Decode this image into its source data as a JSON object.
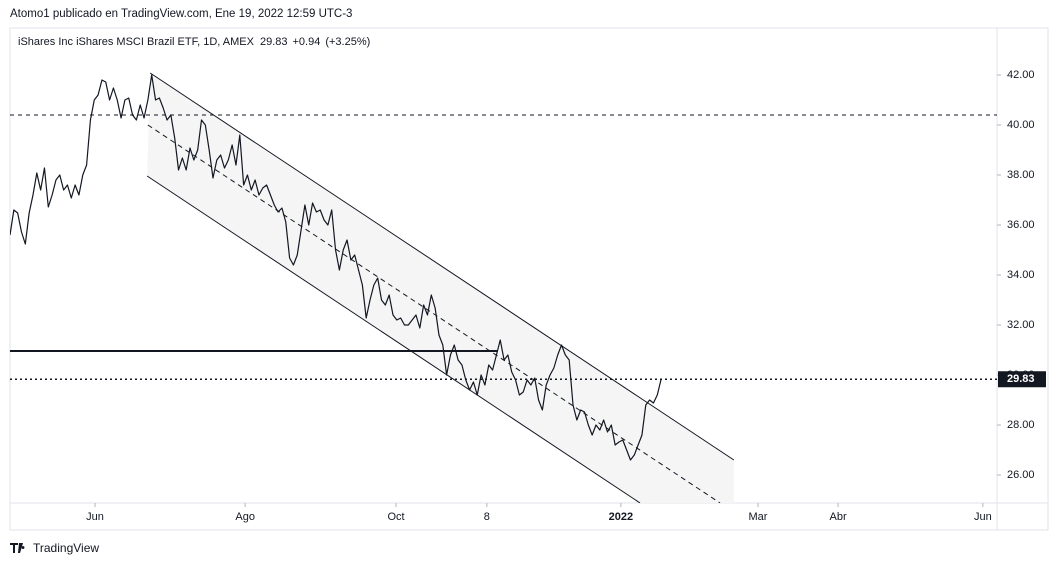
{
  "chart_data": {
    "type": "line",
    "header": "Atomo1 publicado en TradingView.com, Ene 19, 2022 12:59 UTC-3",
    "title": "iShares Inc iShares MSCI Brazil ETF, 1D, AMEX",
    "last": 29.83,
    "change": {
      "value": 0.94,
      "label": "+0.94"
    },
    "change_pct": {
      "value": 3.25,
      "label": "(+3.25%)"
    },
    "footer": "TradingView",
    "series": [
      {
        "name": "iShares MSCI Brazil ETF",
        "color": "#131722",
        "values": [
          35.6,
          36.6,
          36.48,
          35.72,
          35.24,
          36.48,
          37.2,
          38.08,
          37.4,
          38.28,
          36.72,
          37.2,
          37.8,
          38.0,
          37.4,
          37.6,
          37.08,
          37.6,
          37.2,
          38.0,
          38.4,
          40.2,
          41.0,
          41.2,
          41.8,
          41.72,
          41.0,
          41.48,
          41.0,
          40.28,
          41.0,
          41.08,
          40.4,
          40.2,
          40.8,
          40.28,
          41.0,
          42.0,
          41.0,
          41.08,
          40.68,
          40.2,
          40.4,
          39.48,
          38.2,
          38.68,
          38.2,
          39.08,
          38.6,
          39.0,
          40.2,
          40.0,
          39.0,
          37.88,
          38.6,
          38.8,
          38.28,
          38.6,
          39.2,
          38.4,
          39.6,
          37.6,
          38.0,
          37.4,
          37.8,
          37.2,
          37.48,
          37.6,
          37.2,
          36.8,
          36.52,
          36.68,
          36.12,
          34.68,
          34.4,
          34.8,
          35.8,
          36.8,
          36.0,
          36.88,
          36.52,
          36.6,
          36.2,
          36.0,
          36.6,
          35.0,
          34.2,
          35.0,
          35.4,
          34.6,
          34.8,
          34.2,
          33.6,
          32.28,
          33.0,
          33.6,
          33.88,
          33.0,
          32.8,
          33.2,
          32.4,
          32.2,
          32.28,
          32.0,
          32.0,
          32.2,
          32.4,
          31.88,
          32.8,
          32.4,
          33.2,
          32.68,
          31.6,
          31.2,
          30.0,
          30.8,
          31.2,
          30.6,
          30.4,
          29.8,
          29.4,
          29.72,
          29.2,
          30.0,
          29.6,
          30.4,
          30.2,
          30.8,
          31.4,
          30.6,
          30.8,
          30.12,
          29.8,
          29.2,
          29.32,
          29.8,
          29.6,
          29.88,
          29.0,
          28.6,
          29.6,
          30.0,
          30.28,
          30.8,
          31.2,
          30.8,
          30.6,
          28.8,
          28.2,
          28.6,
          28.52,
          28.0,
          27.6,
          28.0,
          27.8,
          28.2,
          27.72,
          28.0,
          27.2,
          27.32,
          27.4,
          27.0,
          26.6,
          26.8,
          27.2,
          27.6,
          28.8,
          29.0,
          28.88,
          29.2,
          29.83
        ]
      }
    ],
    "xlim": [
      0,
      257.7
    ],
    "xticks": [
      {
        "value": 22.2,
        "label": "Jun"
      },
      {
        "value": 61.4,
        "label": "Ago"
      },
      {
        "value": 100.8,
        "label": "Oct"
      },
      {
        "value": 124.5,
        "label": "8"
      },
      {
        "value": 159.5,
        "label": "2022"
      },
      {
        "value": 195.3,
        "label": "Mar"
      },
      {
        "value": 216.2,
        "label": "Abr"
      },
      {
        "value": 254.0,
        "label": "Jun"
      }
    ],
    "ylim": [
      24.88,
      43.88
    ],
    "yticks": [
      {
        "value": 26,
        "label": "26.00"
      },
      {
        "value": 28,
        "label": "28.00"
      },
      {
        "value": 30,
        "label": "30.00"
      },
      {
        "value": 32,
        "label": "32.00"
      },
      {
        "value": 34,
        "label": "34.00"
      },
      {
        "value": 36,
        "label": "36.00"
      },
      {
        "value": 38,
        "label": "38.00"
      },
      {
        "value": 40,
        "label": "40.00"
      },
      {
        "value": 42,
        "label": "42.00"
      }
    ],
    "channel": {
      "upper": [
        [
          36.6,
          42.08
        ],
        [
          189.0,
          26.6
        ]
      ],
      "lower": [
        [
          35.8,
          37.96
        ],
        [
          164.5,
          24.88
        ]
      ],
      "median": [
        [
          36.0,
          40.0
        ],
        [
          185.4,
          24.88
        ]
      ],
      "fill": "#f5f5f5"
    },
    "hlines": [
      {
        "value": 40.4,
        "style": "dashed"
      },
      {
        "value": 30.96,
        "style": "solid",
        "x_end": 127.2
      }
    ]
  }
}
